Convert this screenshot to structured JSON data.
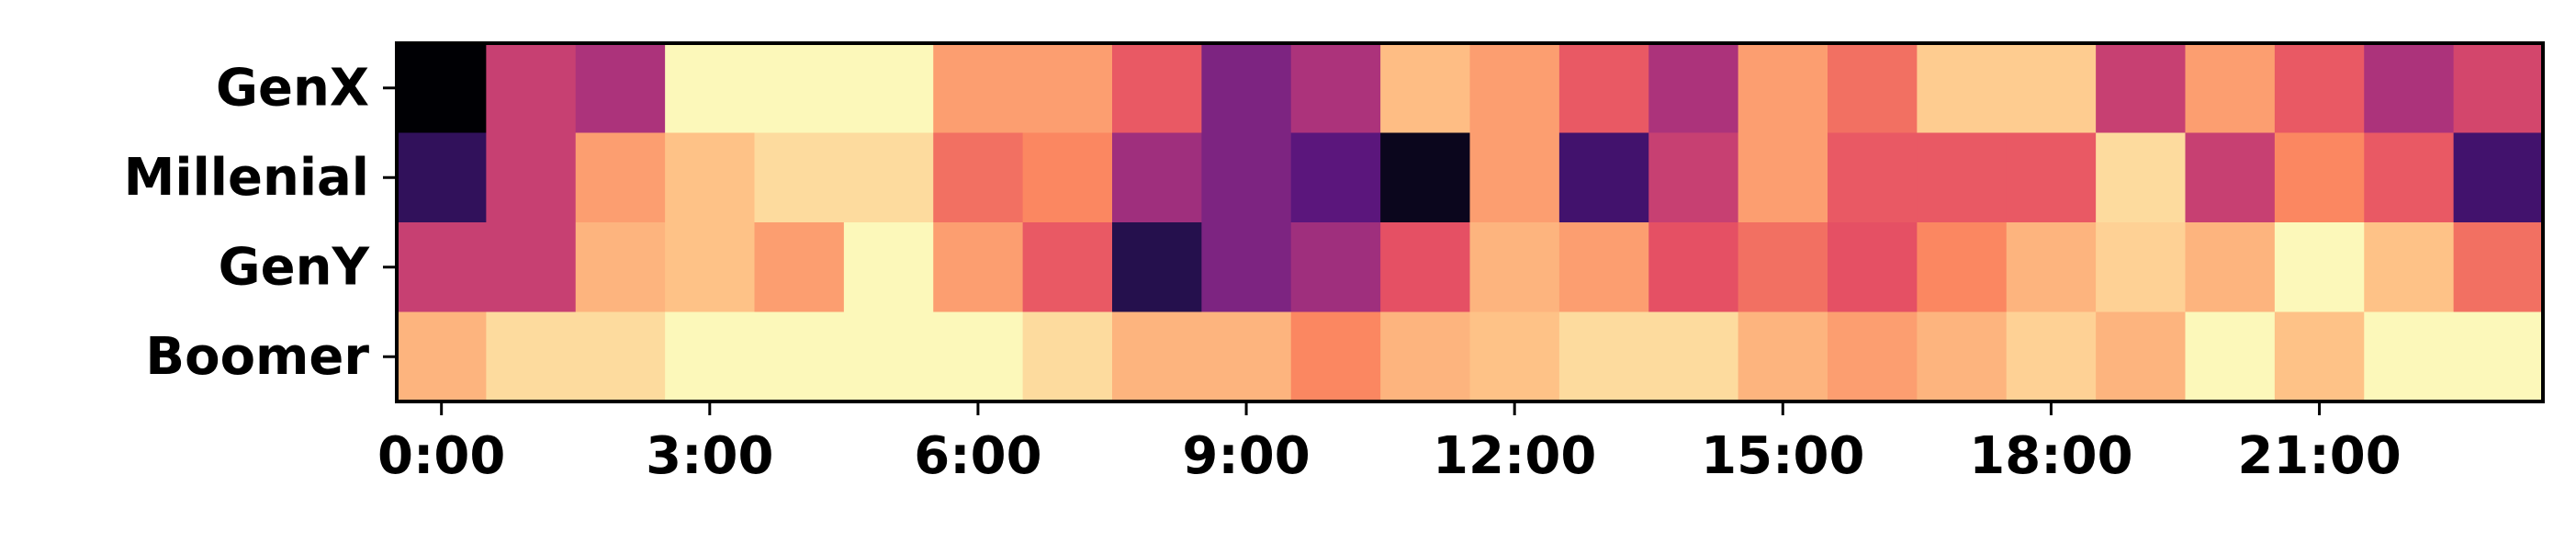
{
  "chart_data": {
    "type": "heatmap",
    "title": "",
    "xlabel": "",
    "ylabel": "",
    "colormap": "magma",
    "value_range": [
      0,
      1
    ],
    "rows": [
      "GenX",
      "Millenial",
      "GenY",
      "Boomer"
    ],
    "x_tick_labels": [
      "0:00",
      "3:00",
      "6:00",
      "9:00",
      "12:00",
      "15:00",
      "18:00",
      "21:00"
    ],
    "x_tick_positions": [
      0,
      3,
      6,
      9,
      12,
      15,
      18,
      21
    ],
    "columns": [
      0,
      1,
      2,
      3,
      4,
      5,
      6,
      7,
      8,
      9,
      10,
      11,
      12,
      13,
      14,
      15,
      16,
      17,
      18,
      19,
      20,
      21,
      22,
      23
    ],
    "values": [
      [
        0.0,
        0.55,
        0.48,
        0.99,
        0.99,
        0.99,
        0.8,
        0.8,
        0.65,
        0.37,
        0.48,
        0.87,
        0.8,
        0.65,
        0.48,
        0.8,
        0.7,
        0.9,
        0.9,
        0.55,
        0.8,
        0.65,
        0.48,
        0.58
      ],
      [
        0.18,
        0.55,
        0.8,
        0.88,
        0.93,
        0.93,
        0.7,
        0.75,
        0.45,
        0.37,
        0.28,
        0.05,
        0.8,
        0.22,
        0.55,
        0.8,
        0.65,
        0.65,
        0.65,
        0.93,
        0.55,
        0.75,
        0.65,
        0.22
      ],
      [
        0.55,
        0.55,
        0.85,
        0.88,
        0.8,
        0.99,
        0.8,
        0.65,
        0.15,
        0.37,
        0.45,
        0.63,
        0.85,
        0.8,
        0.63,
        0.7,
        0.63,
        0.75,
        0.85,
        0.91,
        0.85,
        0.99,
        0.88,
        0.7
      ],
      [
        0.85,
        0.93,
        0.93,
        0.99,
        0.99,
        0.99,
        0.99,
        0.93,
        0.85,
        0.85,
        0.75,
        0.85,
        0.88,
        0.93,
        0.93,
        0.85,
        0.8,
        0.85,
        0.91,
        0.85,
        0.99,
        0.88,
        0.99,
        0.99
      ]
    ]
  }
}
